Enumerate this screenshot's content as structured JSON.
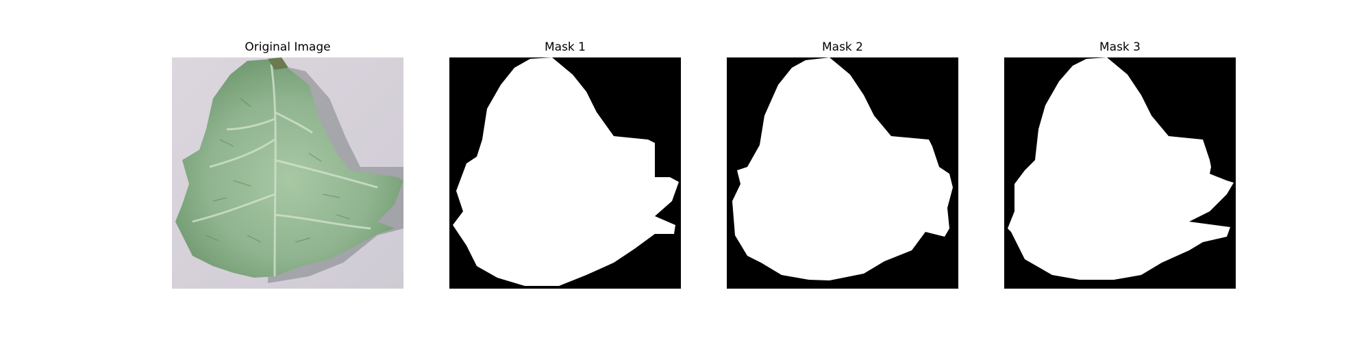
{
  "panels": [
    {
      "title": "Original Image",
      "kind": "photo"
    },
    {
      "title": "Mask 1",
      "kind": "mask"
    },
    {
      "title": "Mask 2",
      "kind": "mask"
    },
    {
      "title": "Mask 3",
      "kind": "mask"
    }
  ],
  "colors": {
    "background": "#d8d4dc",
    "leaf": "#8fb48f",
    "leaf_dark": "#5f865f",
    "vein": "#c9dcc4",
    "mask_bg": "#000000",
    "mask_fg": "#ffffff"
  }
}
